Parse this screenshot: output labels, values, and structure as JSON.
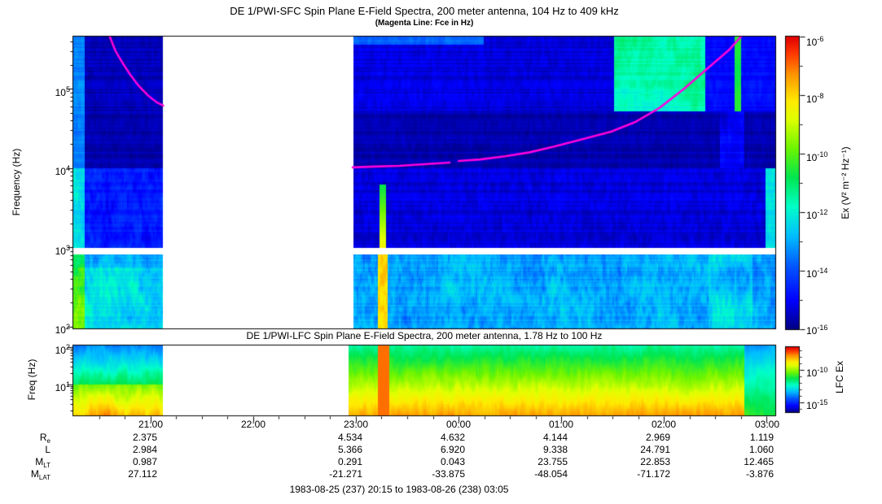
{
  "sfc_panel": {
    "title": "DE 1/PWI-SFC  Spin Plane E-Field Spectra, 200 meter antenna, 104 Hz to 409 kHz",
    "subtitle": "(Magenta Line: Fce in Hz)",
    "ylabel": "Frequency (Hz)",
    "yticks": [
      {
        "base": "10",
        "exp": "5"
      },
      {
        "base": "10",
        "exp": "4"
      },
      {
        "base": "10",
        "exp": "3"
      },
      {
        "base": "10",
        "exp": "2"
      }
    ],
    "colorbar": {
      "label": "Ex (V² m⁻² Hz⁻¹)",
      "ticks": [
        {
          "base": "10",
          "exp": "-6"
        },
        {
          "base": "10",
          "exp": "-8"
        },
        {
          "base": "10",
          "exp": "-10"
        },
        {
          "base": "10",
          "exp": "-12"
        },
        {
          "base": "10",
          "exp": "-14"
        },
        {
          "base": "10",
          "exp": "-16"
        }
      ]
    }
  },
  "lfc_panel": {
    "title": "DE 1/PWI-LFC  Spin Plane E-Field Spectra, 200 meter antenna, 1.78 Hz to 100 Hz",
    "ylabel": "Freq (Hz)",
    "yticks": [
      {
        "base": "10",
        "exp": "2"
      },
      {
        "base": "10",
        "exp": "1"
      }
    ],
    "colorbar": {
      "label": "LFC Ex",
      "ticks": [
        {
          "base": "10",
          "exp": "-10"
        },
        {
          "base": "10",
          "exp": "-15"
        }
      ]
    }
  },
  "ephemeris": {
    "row_labels": [
      {
        "base": "R",
        "sub": "e"
      },
      {
        "base": "L",
        "sub": ""
      },
      {
        "base": "M",
        "sub": "LT"
      },
      {
        "base": "M",
        "sub": "LAT"
      }
    ],
    "columns": [
      {
        "time": "21:00",
        "values": [
          "2.375",
          "2.984",
          "0.987",
          "27.112"
        ]
      },
      {
        "time": "22:00",
        "values": []
      },
      {
        "time": "23:00",
        "values": [
          "4.534",
          "5.366",
          "0.291",
          "-21.271"
        ]
      },
      {
        "time": "00:00",
        "values": [
          "4.632",
          "6.920",
          "0.043",
          "-33.875"
        ]
      },
      {
        "time": "01:00",
        "values": [
          "4.144",
          "9.338",
          "23.755",
          "-48.054"
        ]
      },
      {
        "time": "02:00",
        "values": [
          "2.969",
          "24.791",
          "22.853",
          "-71.172"
        ]
      },
      {
        "time": "03:00",
        "values": [
          "1.119",
          "1.060",
          "12.465",
          "-3.876"
        ]
      }
    ]
  },
  "footer": "1983-08-25 (237) 20:15 to 1983-08-26 (238) 03:05",
  "chart_data": [
    {
      "id": "sfc",
      "type": "heatmap",
      "title": "DE 1/PWI-SFC  Spin Plane E-Field Spectra, 200 meter antenna, 104 Hz to 409 kHz",
      "subtitle": "(Magenta Line: Fce in Hz)",
      "ylabel": "Frequency (Hz)",
      "yscale": "log",
      "ylim_hz": [
        100,
        409000
      ],
      "y_tick_labels": [
        "10^5",
        "10^4",
        "10^3",
        "10^2"
      ],
      "x_time_range": [
        "1983-08-25 20:15",
        "1983-08-26 03:05"
      ],
      "x_tick_labels": [
        "21:00",
        "22:00",
        "23:00",
        "00:00",
        "01:00",
        "02:00",
        "03:00"
      ],
      "colorbar": {
        "label": "Ex (V^2 m^-2 Hz^-1)",
        "scale": "log",
        "tick_exponents": [
          -6,
          -8,
          -10,
          -12,
          -14,
          -16
        ]
      },
      "data_gap_frac": [
        0.128,
        0.398
      ],
      "band_gap_exp": [
        2.92,
        3.0
      ],
      "magenta_line": {
        "meaning": "Fce in Hz",
        "color": "#ff00dd",
        "branches": [
          [
            [
              0.052,
              5.66
            ],
            [
              0.06,
              5.48
            ],
            [
              0.07,
              5.33
            ],
            [
              0.081,
              5.18
            ],
            [
              0.093,
              5.04
            ],
            [
              0.106,
              4.92
            ],
            [
              0.119,
              4.83
            ],
            [
              0.128,
              4.79
            ]
          ],
          [
            [
              0.398,
              4.01
            ],
            [
              0.43,
              4.02
            ],
            [
              0.464,
              4.03
            ],
            [
              0.5,
              4.05
            ],
            [
              0.536,
              4.07
            ]
          ],
          [
            [
              0.549,
              4.09
            ],
            [
              0.58,
              4.11
            ],
            [
              0.615,
              4.15
            ],
            [
              0.65,
              4.2
            ],
            [
              0.684,
              4.27
            ],
            [
              0.723,
              4.36
            ],
            [
              0.766,
              4.46
            ],
            [
              0.8,
              4.58
            ],
            [
              0.835,
              4.76
            ],
            [
              0.87,
              5.0
            ],
            [
              0.905,
              5.27
            ],
            [
              0.934,
              5.49
            ],
            [
              0.952,
              5.67
            ]
          ]
        ]
      },
      "features": [
        {
          "kind": "intense-vertical-streak",
          "t_frac": 0.441,
          "note": "orange-red burst below ~10 kHz near 23:20"
        },
        {
          "kind": "auroral-hiss-curtains",
          "t_range": [
            0.4,
            0.77
          ],
          "f_range_exp": [
            4.72,
            5.66
          ]
        },
        {
          "kind": "bright-green-yellow-blob",
          "t_range": [
            0.77,
            0.9
          ],
          "f_range_exp": [
            4.72,
            5.66
          ]
        },
        {
          "kind": "broadband-turbulence",
          "f_range_exp": [
            2.0,
            2.92
          ]
        }
      ],
      "colormap": [
        [
          0,
          0,
          0,
          130
        ],
        [
          0.1,
          0,
          0,
          255
        ],
        [
          0.22,
          0,
          90,
          255
        ],
        [
          0.32,
          0,
          190,
          255
        ],
        [
          0.42,
          0,
          255,
          200
        ],
        [
          0.52,
          0,
          230,
          80
        ],
        [
          0.62,
          110,
          245,
          0
        ],
        [
          0.72,
          225,
          255,
          0
        ],
        [
          0.78,
          255,
          235,
          0
        ],
        [
          0.87,
          255,
          150,
          0
        ],
        [
          0.94,
          255,
          60,
          0
        ],
        [
          1,
          225,
          0,
          0
        ]
      ]
    },
    {
      "id": "lfc",
      "type": "heatmap",
      "title": "DE 1/PWI-LFC  Spin Plane E-Field Spectra, 200 meter antenna, 1.78 Hz to 100 Hz",
      "ylabel": "Freq (Hz)",
      "yscale": "log",
      "ylim_hz": [
        1.78,
        100
      ],
      "y_tick_labels": [
        "10^2",
        "10^1"
      ],
      "x_time_range": [
        "1983-08-25 20:15",
        "1983-08-26 03:05"
      ],
      "x_tick_labels": [
        "21:00",
        "22:00",
        "23:00",
        "00:00",
        "01:00",
        "02:00",
        "03:00"
      ],
      "colorbar": {
        "label": "LFC Ex",
        "scale": "log",
        "tick_exponents": [
          -10,
          -15
        ]
      },
      "data_gap_frac": [
        0.128,
        0.392
      ],
      "features": [
        {
          "kind": "intense-red-band",
          "t_range": [
            0.392,
            0.955
          ],
          "note": "saturated low-frequency power after 23:00"
        },
        {
          "kind": "red-column",
          "t_frac": 0.443
        },
        {
          "kind": "green-recovery",
          "t_range": [
            0.957,
            1.0
          ]
        }
      ]
    }
  ]
}
